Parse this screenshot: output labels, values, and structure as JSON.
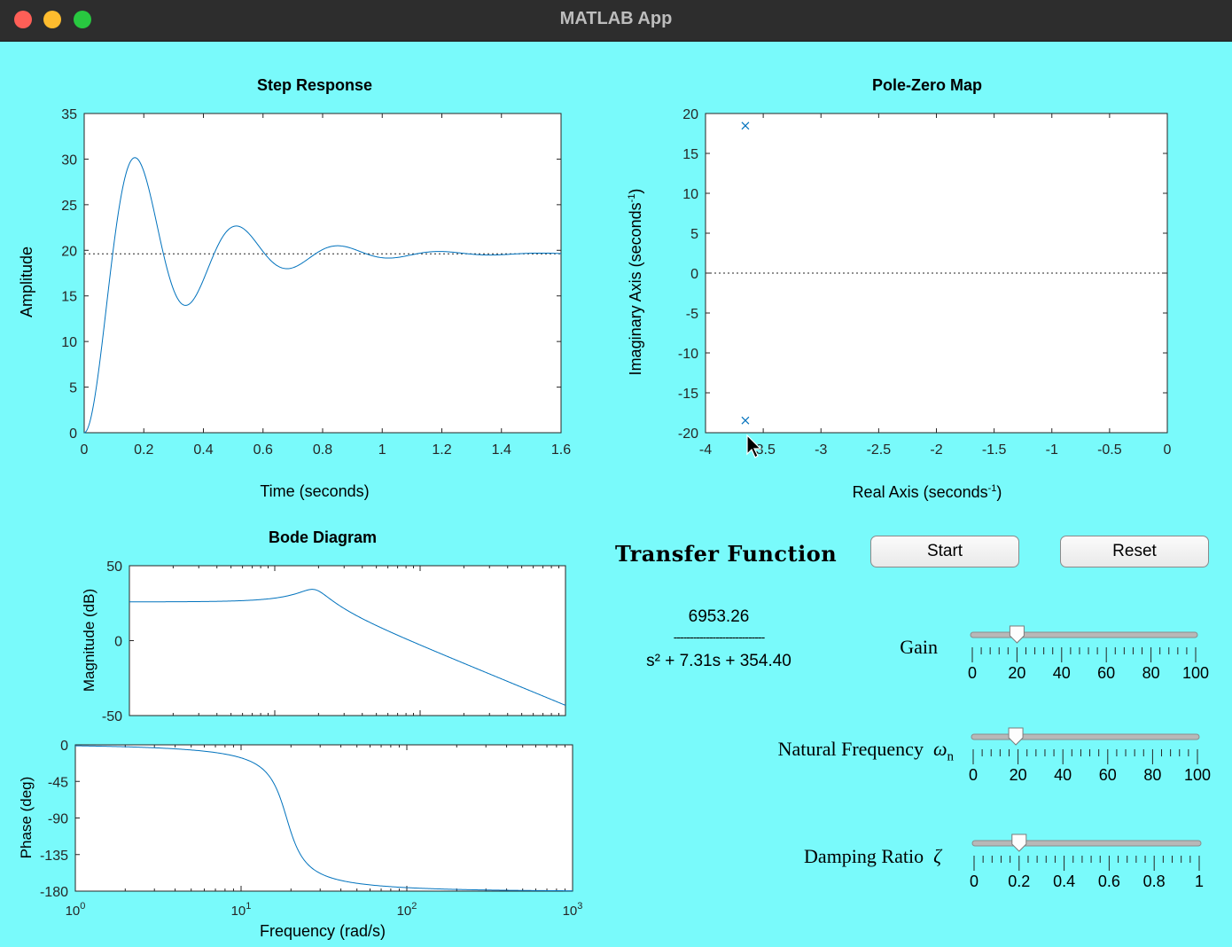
{
  "window": {
    "title": "MATLAB App"
  },
  "colors": {
    "background": "#79fafb",
    "line": "#0072bd",
    "titlebar": "#2d2d2d",
    "close": "#ff5f57",
    "minimize": "#febc2e",
    "zoom": "#28c840"
  },
  "step_response": {
    "title": "Step Response",
    "xlabel": "Time (seconds)",
    "ylabel": "Amplitude",
    "xticks": [
      "0",
      "0.2",
      "0.4",
      "0.6",
      "0.8",
      "1",
      "1.2",
      "1.4",
      "1.6"
    ],
    "yticks": [
      "0",
      "5",
      "10",
      "15",
      "20",
      "25",
      "30",
      "35"
    ],
    "xlim": [
      0,
      1.6
    ],
    "ylim": [
      0,
      35
    ],
    "final_value": 19.62
  },
  "pole_zero": {
    "title": "Pole-Zero Map",
    "xlabel_main": "Real Axis (seconds",
    "xlabel_sup": "-1",
    "xlabel_close": ")",
    "ylabel_main": "Imaginary Axis (seconds",
    "ylabel_sup": "-1",
    "ylabel_close": ")",
    "xticks": [
      "-4",
      "-3.5",
      "-3",
      "-2.5",
      "-2",
      "-1.5",
      "-1",
      "-0.5",
      "0"
    ],
    "yticks": [
      "-20",
      "-15",
      "-10",
      "-5",
      "0",
      "5",
      "10",
      "15",
      "20"
    ],
    "xlim": [
      -4,
      0
    ],
    "ylim": [
      -20,
      20
    ],
    "poles": [
      {
        "re": -3.655,
        "im": 18.47
      },
      {
        "re": -3.655,
        "im": -18.47
      }
    ]
  },
  "bode": {
    "title": "Bode Diagram",
    "xlabel": "Frequency (rad/s)",
    "mag_ylabel": "Magnitude (dB)",
    "phase_ylabel": "Phase (deg)",
    "mag_yticks": [
      "-50",
      "0",
      "50"
    ],
    "phase_yticks": [
      "-180",
      "-135",
      "-90",
      "-45",
      "0"
    ],
    "xticks": [
      {
        "base": "10",
        "exp": "0"
      },
      {
        "base": "10",
        "exp": "1"
      },
      {
        "base": "10",
        "exp": "2"
      },
      {
        "base": "10",
        "exp": "3"
      }
    ],
    "xlim": [
      1,
      1000
    ],
    "mag_ylim": [
      -50,
      50
    ],
    "phase_ylim": [
      -180,
      0
    ]
  },
  "transfer_function": {
    "title": "Transfer Function",
    "numerator": "6953.26",
    "divider": "----------------------------",
    "denominator": "s² + 7.31s + 354.40",
    "K": 19.62,
    "wn": 18.826,
    "zeta": 0.194
  },
  "buttons": {
    "start": "Start",
    "reset": "Reset"
  },
  "sliders": [
    {
      "id": "gain",
      "label": "Gain",
      "symbol": "",
      "subscript": "",
      "value": 20,
      "min": 0,
      "max": 100,
      "ticks": [
        "0",
        "20",
        "40",
        "60",
        "80",
        "100"
      ]
    },
    {
      "id": "natural-frequency",
      "label": "Natural  Frequency",
      "symbol": "ω",
      "subscript": "n",
      "value": 19,
      "min": 0,
      "max": 100,
      "ticks": [
        "0",
        "20",
        "40",
        "60",
        "80",
        "100"
      ]
    },
    {
      "id": "damping-ratio",
      "label": "Damping  Ratio",
      "symbol": "ζ",
      "subscript": "",
      "value": 0.2,
      "min": 0,
      "max": 1,
      "ticks": [
        "0",
        "0.2",
        "0.4",
        "0.6",
        "0.8",
        "1"
      ]
    }
  ]
}
